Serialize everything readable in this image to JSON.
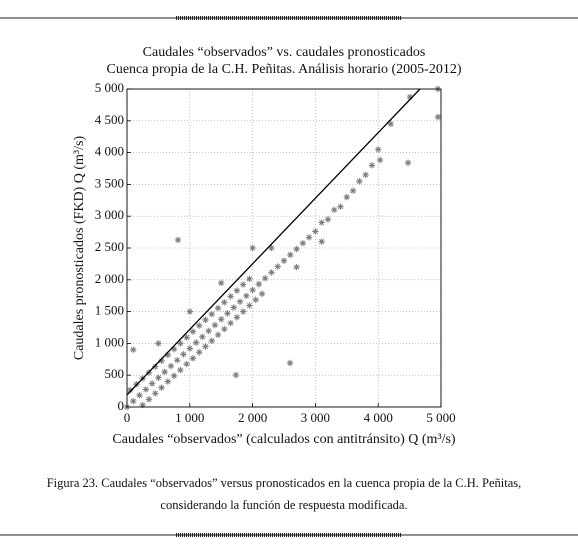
{
  "chart_data": {
    "type": "scatter",
    "title": "Caudales “observados” vs. caudales pronosticados",
    "subtitle": "Cuenca propia de la C.H. Peñitas. Análisis horario (2005-2012)",
    "x_label": "Caudales “observados” (calculados con antitránsito) Q (m³/s)",
    "y_label": "Caudales pronosticados (FKD) Q (m³/s)",
    "caption": [
      "Figura 23. Caudales “observados” versus pronosticados en la cuenca propia de la C.H. Peñitas,",
      "considerando  la función de respuesta modificada."
    ],
    "xlim": [
      0,
      5000
    ],
    "ylim": [
      0,
      5000
    ],
    "xticks": [
      0,
      {
        "value": 1000,
        "label": "1 000"
      },
      {
        "value": 2000,
        "label": "2 000"
      },
      {
        "value": 3000,
        "label": "3 000"
      },
      {
        "value": 4000,
        "label": "4 000"
      },
      {
        "value": 5000,
        "label": "5 000"
      }
    ],
    "yticks": [
      0,
      500,
      {
        "value": 1000,
        "label": "1 000"
      },
      {
        "value": 1500,
        "label": "1 500"
      },
      {
        "value": 2000,
        "label": "2 000"
      },
      {
        "value": 2500,
        "label": "2 500"
      },
      {
        "value": 3000,
        "label": "3 000"
      },
      {
        "value": 3500,
        "label": "3 500"
      },
      {
        "value": 4000,
        "label": "4 000"
      },
      {
        "value": 4500,
        "label": "4 500"
      },
      {
        "value": 5000,
        "label": "5 000"
      }
    ],
    "grid": true,
    "color": "#7c7c7c",
    "x": [
      0,
      100,
      200,
      300,
      400,
      500,
      600,
      700,
      800,
      900,
      1000,
      1100,
      1200,
      1300,
      1400,
      1500,
      1600,
      1700,
      1800,
      1900,
      2000,
      2100,
      2200,
      2300,
      2400,
      2500,
      2600,
      2700,
      2800,
      2900,
      3000,
      50,
      150,
      250,
      350,
      450,
      550,
      650,
      750,
      850,
      950,
      1050,
      1150,
      1250,
      1350,
      1450,
      1550,
      1650,
      1750,
      1850,
      1950,
      250,
      350,
      450,
      550,
      650,
      750,
      850,
      950,
      1050,
      1150,
      1250,
      1350,
      1450,
      1550,
      1650,
      1750,
      1850,
      1950,
      2050,
      2150,
      3100,
      3200,
      3300,
      3400,
      3500,
      3600,
      3700,
      3800,
      3900,
      4000,
      4200,
      2300,
      2700,
      3100,
      2000,
      1500,
      1000,
      500,
      100,
      812,
      2596,
      4029,
      4475,
      4952,
      4950,
      4506,
      1736
    ],
    "y": [
      0,
      92,
      184,
      276,
      368,
      460,
      552,
      644,
      736,
      828,
      920,
      1012,
      1104,
      1196,
      1288,
      1380,
      1472,
      1564,
      1656,
      1748,
      1840,
      1932,
      2024,
      2116,
      2208,
      2300,
      2392,
      2484,
      2576,
      2668,
      2760,
      266,
      358,
      450,
      540,
      635,
      726,
      820,
      910,
      1000,
      1095,
      1185,
      1280,
      1370,
      1460,
      1555,
      1645,
      1740,
      1830,
      1925,
      2015,
      30,
      120,
      215,
      305,
      400,
      490,
      580,
      675,
      765,
      860,
      950,
      1040,
      1135,
      1225,
      1320,
      1410,
      1500,
      1595,
      1685,
      1780,
      2900,
      2950,
      3100,
      3150,
      3300,
      3400,
      3550,
      3650,
      3800,
      4050,
      4450,
      2500,
      2200,
      2600,
      2500,
      1950,
      1500,
      1000,
      900,
      2626,
      692,
      3884,
      3840,
      4560,
      5000,
      4874,
      503
    ],
    "reference_line": {
      "x": [
        0,
        4666
      ],
      "y": [
        190,
        5000
      ],
      "color": "#000000"
    }
  }
}
